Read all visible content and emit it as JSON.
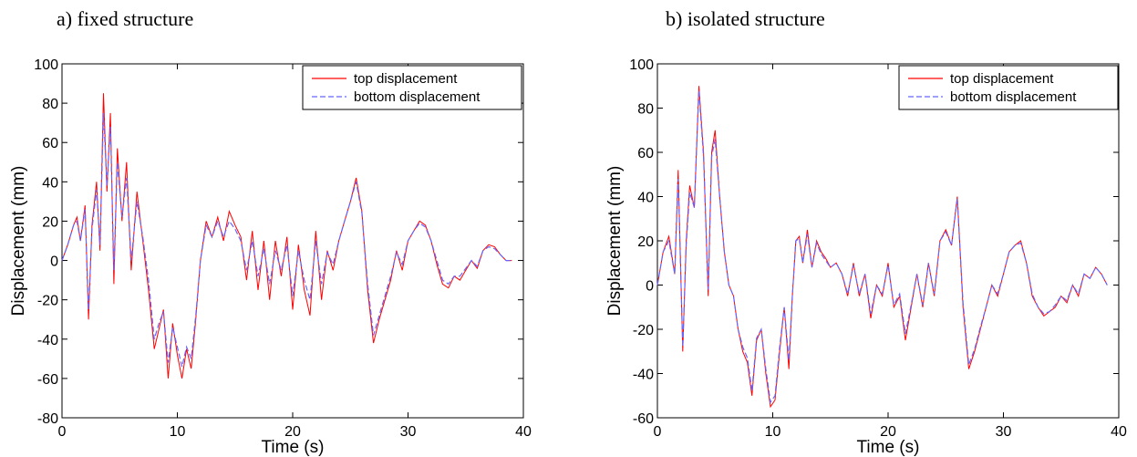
{
  "panels": [
    {
      "title": "a) fixed structure"
    },
    {
      "title": "b) isolated structure"
    }
  ],
  "colors": {
    "top": "#ff0000",
    "bottom": "#6666ff",
    "axis": "#000000"
  },
  "chart_data": [
    {
      "type": "line",
      "title": "a) fixed structure",
      "xlabel": "Time (s)",
      "ylabel": "Displacement (mm)",
      "xlim": [
        0,
        40
      ],
      "ylim": [
        -80,
        100
      ],
      "xticks": [
        0,
        10,
        20,
        30,
        40
      ],
      "yticks": [
        -80,
        -60,
        -40,
        -20,
        0,
        20,
        40,
        60,
        80,
        100
      ],
      "legend_position": "top-right",
      "grid": false,
      "series": [
        {
          "name": "top displacement",
          "style": "solid",
          "color": "#ff0000",
          "x": [
            0,
            0.5,
            1,
            1.3,
            1.6,
            2,
            2.3,
            2.6,
            3,
            3.3,
            3.6,
            3.9,
            4.2,
            4.5,
            4.8,
            5.2,
            5.6,
            6,
            6.5,
            7,
            7.5,
            8,
            8.4,
            8.8,
            9.2,
            9.6,
            10,
            10.4,
            10.8,
            11.2,
            11.6,
            12,
            12.5,
            13,
            13.5,
            14,
            14.5,
            15,
            15.5,
            16,
            16.5,
            17,
            17.5,
            18,
            18.5,
            19,
            19.5,
            20,
            20.5,
            21,
            21.5,
            22,
            22.5,
            23,
            23.5,
            24,
            24.5,
            25,
            25.5,
            26,
            26.5,
            27,
            27.5,
            28,
            28.5,
            29,
            29.5,
            30,
            30.5,
            31,
            31.5,
            32,
            32.5,
            33,
            33.5,
            34,
            34.5,
            35,
            35.5,
            36,
            36.5,
            37,
            37.5,
            38,
            38.5,
            39
          ],
          "y": [
            0,
            8,
            18,
            22,
            10,
            28,
            -30,
            18,
            40,
            5,
            85,
            35,
            75,
            -12,
            57,
            20,
            50,
            -5,
            35,
            10,
            -15,
            -45,
            -35,
            -25,
            -60,
            -32,
            -48,
            -60,
            -45,
            -55,
            -30,
            0,
            20,
            12,
            22,
            10,
            25,
            18,
            12,
            -10,
            15,
            -15,
            10,
            -20,
            10,
            -8,
            12,
            -25,
            8,
            -15,
            -28,
            15,
            -20,
            5,
            -5,
            10,
            20,
            30,
            42,
            25,
            -15,
            -42,
            -30,
            -20,
            -10,
            5,
            -5,
            10,
            15,
            20,
            18,
            10,
            -2,
            -12,
            -14,
            -8,
            -10,
            -5,
            0,
            -4,
            5,
            8,
            7,
            3,
            0,
            0
          ]
        },
        {
          "name": "bottom displacement",
          "style": "dashed",
          "color": "#6666ff",
          "x": [
            0,
            0.5,
            1,
            1.3,
            1.6,
            2,
            2.3,
            2.6,
            3,
            3.3,
            3.6,
            3.9,
            4.2,
            4.5,
            4.8,
            5.2,
            5.6,
            6,
            6.5,
            7,
            7.5,
            8,
            8.4,
            8.8,
            9.2,
            9.6,
            10,
            10.4,
            10.8,
            11.2,
            11.6,
            12,
            12.5,
            13,
            13.5,
            14,
            14.5,
            15,
            15.5,
            16,
            16.5,
            17,
            17.5,
            18,
            18.5,
            19,
            19.5,
            20,
            20.5,
            21,
            21.5,
            22,
            22.5,
            23,
            23.5,
            24,
            24.5,
            25,
            25.5,
            26,
            26.5,
            27,
            27.5,
            28,
            28.5,
            29,
            29.5,
            30,
            30.5,
            31,
            31.5,
            32,
            32.5,
            33,
            33.5,
            34,
            34.5,
            35,
            35.5,
            36,
            36.5,
            37,
            37.5,
            38,
            38.5,
            39
          ],
          "y": [
            0,
            8,
            18,
            20,
            10,
            26,
            -25,
            16,
            36,
            8,
            75,
            38,
            68,
            -5,
            50,
            22,
            42,
            0,
            30,
            12,
            -10,
            -40,
            -32,
            -26,
            -52,
            -34,
            -44,
            -54,
            -44,
            -50,
            -28,
            0,
            18,
            12,
            20,
            12,
            20,
            16,
            10,
            -5,
            10,
            -8,
            6,
            -12,
            5,
            -5,
            8,
            -18,
            5,
            -10,
            -20,
            10,
            -12,
            4,
            -2,
            10,
            20,
            30,
            40,
            24,
            -12,
            -38,
            -28,
            -18,
            -8,
            4,
            -2,
            10,
            15,
            19,
            17,
            10,
            0,
            -10,
            -12,
            -8,
            -8,
            -4,
            0,
            -3,
            5,
            7,
            6,
            3,
            0,
            0
          ]
        }
      ]
    },
    {
      "type": "line",
      "title": "b) isolated structure",
      "xlabel": "Time (s)",
      "ylabel": "Displacement (mm)",
      "xlim": [
        0,
        40
      ],
      "ylim": [
        -60,
        100
      ],
      "xticks": [
        0,
        10,
        20,
        30,
        40
      ],
      "yticks": [
        -60,
        -40,
        -20,
        0,
        20,
        40,
        60,
        80,
        100
      ],
      "legend_position": "top-right",
      "grid": false,
      "series": [
        {
          "name": "top displacement",
          "style": "solid",
          "color": "#ff0000",
          "x": [
            0,
            0.5,
            1,
            1.5,
            1.8,
            2.2,
            2.5,
            2.8,
            3.2,
            3.6,
            4,
            4.4,
            4.7,
            5,
            5.4,
            5.8,
            6.2,
            6.6,
            7,
            7.4,
            7.8,
            8.2,
            8.6,
            9,
            9.4,
            9.8,
            10.2,
            10.6,
            11,
            11.4,
            11.7,
            12,
            12.3,
            12.6,
            13,
            13.4,
            13.8,
            14.2,
            14.6,
            15,
            15.5,
            16,
            16.5,
            17,
            17.5,
            18,
            18.5,
            19,
            19.5,
            20,
            20.5,
            21,
            21.5,
            22,
            22.5,
            23,
            23.5,
            24,
            24.5,
            25,
            25.5,
            26,
            26.5,
            27,
            27.5,
            28,
            28.5,
            29,
            29.5,
            30,
            30.5,
            31,
            31.5,
            32,
            32.5,
            33,
            33.5,
            34,
            34.5,
            35,
            35.5,
            36,
            36.5,
            37,
            37.5,
            38,
            38.5,
            39
          ],
          "y": [
            0,
            15,
            22,
            5,
            52,
            -30,
            20,
            45,
            35,
            90,
            60,
            -5,
            60,
            70,
            40,
            15,
            0,
            -5,
            -20,
            -30,
            -35,
            -50,
            -25,
            -20,
            -40,
            -55,
            -52,
            -30,
            -10,
            -38,
            -5,
            20,
            22,
            10,
            25,
            8,
            20,
            15,
            12,
            8,
            10,
            5,
            -5,
            10,
            -5,
            5,
            -15,
            0,
            -5,
            10,
            -10,
            -5,
            -25,
            -10,
            5,
            -10,
            10,
            -5,
            20,
            25,
            18,
            40,
            -10,
            -38,
            -30,
            -20,
            -10,
            0,
            -5,
            5,
            15,
            18,
            20,
            10,
            -5,
            -10,
            -14,
            -12,
            -10,
            -5,
            -8,
            0,
            -5,
            5,
            3,
            8,
            5,
            0
          ]
        },
        {
          "name": "bottom displacement",
          "style": "dashed",
          "color": "#6666ff",
          "x": [
            0,
            0.5,
            1,
            1.5,
            1.8,
            2.2,
            2.5,
            2.8,
            3.2,
            3.6,
            4,
            4.4,
            4.7,
            5,
            5.4,
            5.8,
            6.2,
            6.6,
            7,
            7.4,
            7.8,
            8.2,
            8.6,
            9,
            9.4,
            9.8,
            10.2,
            10.6,
            11,
            11.4,
            11.7,
            12,
            12.3,
            12.6,
            13,
            13.4,
            13.8,
            14.2,
            14.6,
            15,
            15.5,
            16,
            16.5,
            17,
            17.5,
            18,
            18.5,
            19,
            19.5,
            20,
            20.5,
            21,
            21.5,
            22,
            22.5,
            23,
            23.5,
            24,
            24.5,
            25,
            25.5,
            26,
            26.5,
            27,
            27.5,
            28,
            28.5,
            29,
            29.5,
            30,
            30.5,
            31,
            31.5,
            32,
            32.5,
            33,
            33.5,
            34,
            34.5,
            35,
            35.5,
            36,
            36.5,
            37,
            37.5,
            38,
            38.5,
            39
          ],
          "y": [
            0,
            15,
            20,
            5,
            48,
            -28,
            18,
            42,
            35,
            88,
            58,
            -2,
            58,
            66,
            40,
            15,
            0,
            -5,
            -20,
            -28,
            -33,
            -48,
            -24,
            -20,
            -38,
            -53,
            -50,
            -28,
            -10,
            -34,
            -5,
            20,
            21,
            10,
            23,
            8,
            19,
            14,
            11,
            8,
            10,
            5,
            -4,
            9,
            -4,
            5,
            -13,
            0,
            -4,
            9,
            -9,
            -4,
            -22,
            -9,
            5,
            -9,
            10,
            -4,
            20,
            24,
            18,
            39,
            -8,
            -36,
            -29,
            -19,
            -10,
            0,
            -4,
            5,
            15,
            18,
            19,
            10,
            -4,
            -10,
            -13,
            -12,
            -9,
            -5,
            -7,
            0,
            -4,
            5,
            3,
            8,
            5,
            0
          ]
        }
      ]
    }
  ]
}
